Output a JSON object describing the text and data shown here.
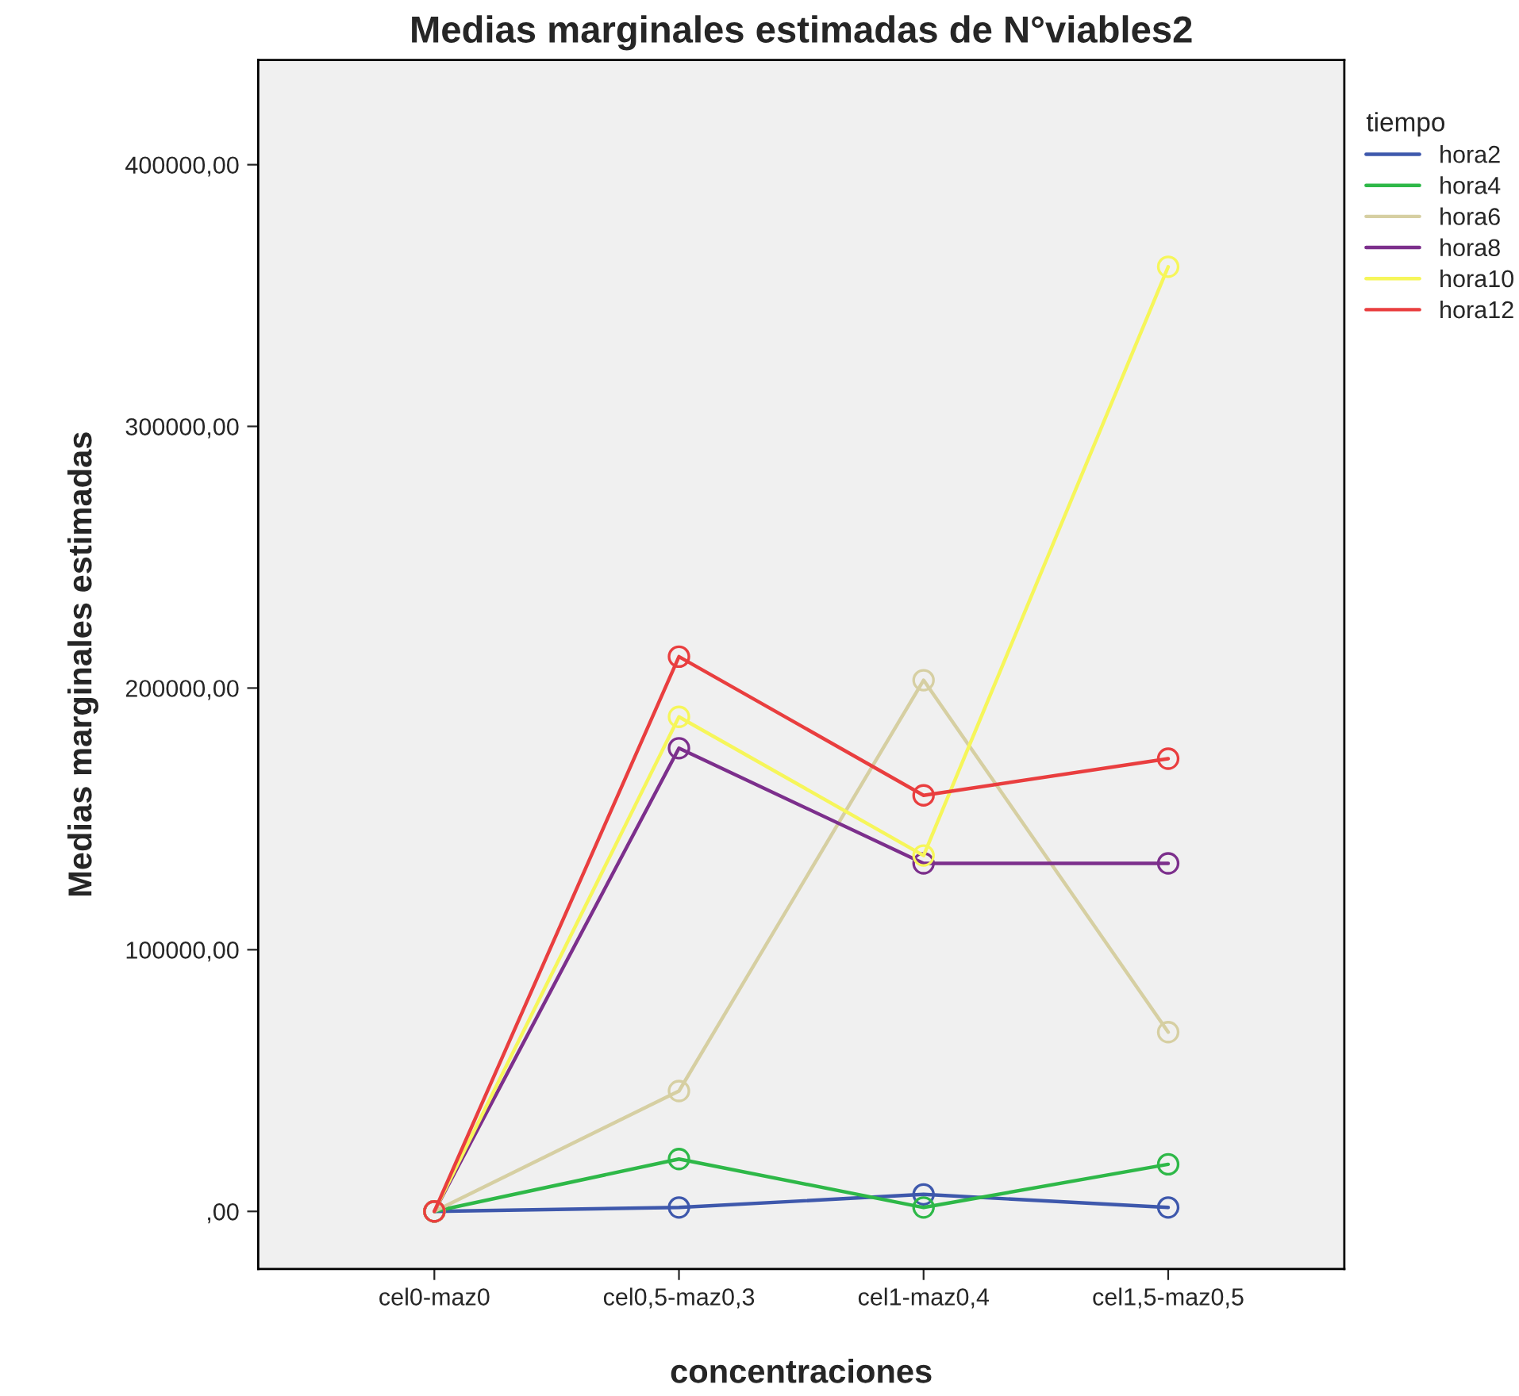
{
  "chart_data": {
    "type": "line",
    "title": "Medias marginales estimadas de N°viables2",
    "xlabel": "concentraciones",
    "ylabel": "Medias marginales estimadas",
    "legend_title": "tiempo",
    "categories": [
      "cel0-maz0",
      "cel0,5-maz0,3",
      "cel1-maz0,4",
      "cel1,5-maz0,5"
    ],
    "series": [
      {
        "name": "hora2",
        "color": "#3e58ac",
        "values": [
          0,
          1500,
          6500,
          1500
        ]
      },
      {
        "name": "hora4",
        "color": "#2eb848",
        "values": [
          0,
          20000,
          1500,
          18000
        ]
      },
      {
        "name": "hora6",
        "color": "#d6cfa2",
        "values": [
          0,
          46000,
          203000,
          68500
        ]
      },
      {
        "name": "hora8",
        "color": "#7c2f8c",
        "values": [
          0,
          177000,
          133000,
          133000
        ]
      },
      {
        "name": "hora10",
        "color": "#f6f65a",
        "values": [
          0,
          189000,
          136000,
          361000
        ]
      },
      {
        "name": "hora12",
        "color": "#e93e3f",
        "values": [
          0,
          212000,
          159000,
          173000
        ]
      }
    ],
    "ylim": [
      -22000,
      440000
    ],
    "yticks": [
      {
        "value": 0,
        "label": ",00"
      },
      {
        "value": 100000,
        "label": "100000,00"
      },
      {
        "value": 200000,
        "label": "200000,00"
      },
      {
        "value": 300000,
        "label": "300000,00"
      },
      {
        "value": 400000,
        "label": "400000,00"
      }
    ],
    "marker": "circle",
    "line_style": "solid",
    "legend": "top right",
    "grid": false
  }
}
